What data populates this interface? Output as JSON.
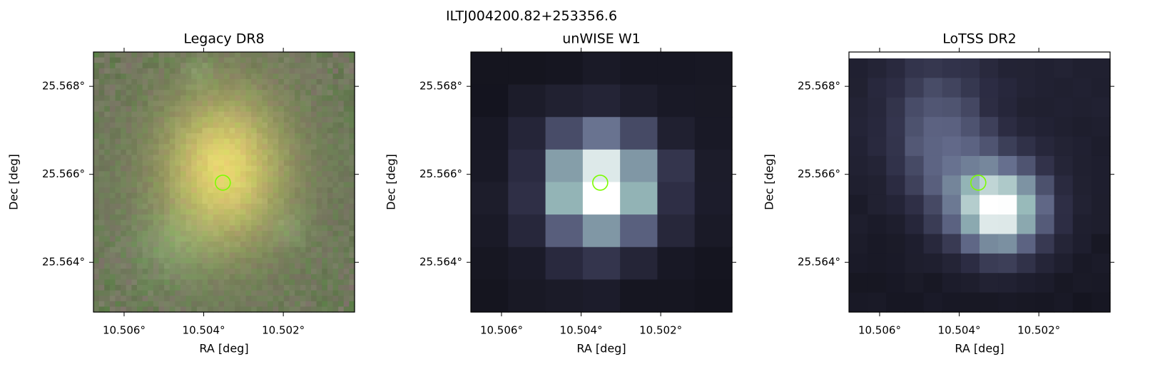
{
  "title": "ILTJ004200.82+253356.6",
  "chart_data": [
    {
      "type": "image",
      "title": "Legacy DR8",
      "xlabel": "RA [deg]",
      "ylabel": "Dec [deg]",
      "xlim": [
        10.50677,
        10.50021
      ],
      "ylim": [
        25.56287,
        25.56878
      ],
      "xticks": [
        {
          "value": 10.506,
          "label": "10.506°"
        },
        {
          "value": 10.504,
          "label": "10.504°"
        },
        {
          "value": 10.502,
          "label": "10.502°"
        }
      ],
      "yticks": [
        {
          "value": 25.564,
          "label": "25.564°"
        },
        {
          "value": 25.566,
          "label": "25.566°"
        },
        {
          "value": 25.568,
          "label": "25.568°"
        }
      ],
      "marker": {
        "x": 10.50352,
        "y": 25.56581,
        "color": "#7cfc00"
      }
    },
    {
      "type": "image",
      "title": "unWISE W1",
      "xlabel": "RA [deg]",
      "ylabel": "Dec [deg]",
      "xlim": [
        10.50677,
        10.50021
      ],
      "ylim": [
        25.56287,
        25.56878
      ],
      "xticks": [
        {
          "value": 10.506,
          "label": "10.506°"
        },
        {
          "value": 10.504,
          "label": "10.504°"
        },
        {
          "value": 10.502,
          "label": "10.502°"
        }
      ],
      "yticks": [
        {
          "value": 25.564,
          "label": "25.564°"
        },
        {
          "value": 25.566,
          "label": "25.566°"
        },
        {
          "value": 25.568,
          "label": "25.568°"
        }
      ],
      "marker": {
        "x": 10.50352,
        "y": 25.56581,
        "color": "#7cfc00"
      }
    },
    {
      "type": "image",
      "title": "LoTSS DR2",
      "xlabel": "RA [deg]",
      "ylabel": "Dec [deg]",
      "xlim": [
        10.50677,
        10.50021
      ],
      "ylim": [
        25.56287,
        25.56878
      ],
      "xticks": [
        {
          "value": 10.506,
          "label": "10.506°"
        },
        {
          "value": 10.504,
          "label": "10.504°"
        },
        {
          "value": 10.502,
          "label": "10.502°"
        }
      ],
      "yticks": [
        {
          "value": 25.564,
          "label": "25.564°"
        },
        {
          "value": 25.566,
          "label": "25.566°"
        },
        {
          "value": 25.568,
          "label": "25.568°"
        }
      ],
      "marker": {
        "x": 10.50352,
        "y": 25.56581,
        "color": "#7cfc00"
      }
    }
  ]
}
